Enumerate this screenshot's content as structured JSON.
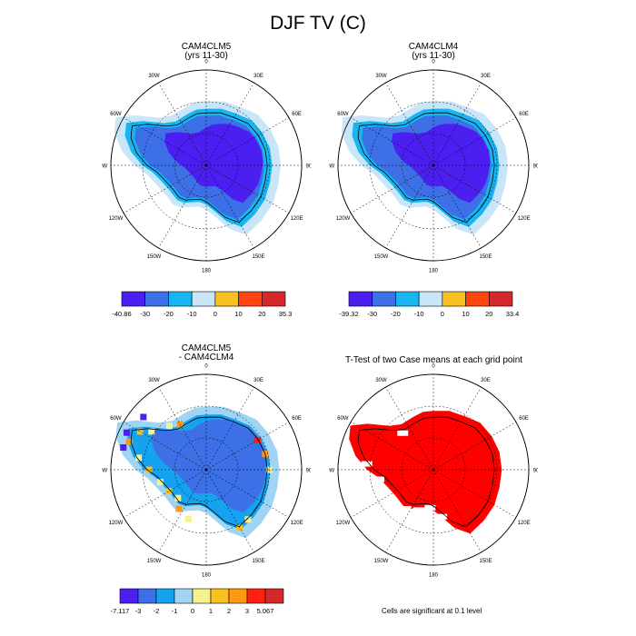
{
  "main_title": "DJF TV (C)",
  "panels": [
    {
      "title_line1": "CAM4CLM5",
      "title_line2": "(yrs 11-30)",
      "lon_labels": [
        "0",
        "30E",
        "60E",
        "90E",
        "120E",
        "150E",
        "180",
        "150W",
        "120W",
        "90W",
        "60W",
        "30W"
      ],
      "colorbar": {
        "colors": [
          "#4a1ff0",
          "#3d6fe6",
          "#17b6f2",
          "#c8e6f8",
          "#f8c020",
          "#ff4410",
          "#d4282a"
        ],
        "labels": [
          "-40.86",
          "-30",
          "-20",
          "-10",
          "0",
          "10",
          "20",
          "35.3"
        ]
      },
      "field": "temperature"
    },
    {
      "title_line1": "CAM4CLM4",
      "title_line2": "(yrs 11-30)",
      "lon_labels": [
        "0",
        "30E",
        "60E",
        "90E",
        "120E",
        "150E",
        "180",
        "150W",
        "120W",
        "90W",
        "60W",
        "30W"
      ],
      "colorbar": {
        "colors": [
          "#4a1ff0",
          "#3d6fe6",
          "#17b6f2",
          "#c8e6f8",
          "#f8c020",
          "#ff4410",
          "#d4282a"
        ],
        "labels": [
          "-39.32",
          "-30",
          "-20",
          "-10",
          "0",
          "10",
          "20",
          "33.4"
        ]
      },
      "field": "temperature"
    },
    {
      "title_line1": "CAM4CLM5",
      "title_line2": "- CAM4CLM4",
      "lon_labels": [
        "0",
        "30E",
        "60E",
        "90E",
        "120E",
        "150E",
        "180",
        "150W",
        "120W",
        "90W",
        "60W",
        "30W"
      ],
      "colorbar": {
        "colors": [
          "#4a1ff0",
          "#3d6fe6",
          "#15a3f0",
          "#9fd4f4",
          "#f5f090",
          "#f8c020",
          "#ff9810",
          "#ff2010",
          "#d4282a"
        ],
        "labels": [
          "-7.117",
          "-3",
          "-2",
          "-1",
          "0",
          "1",
          "2",
          "3",
          "5.067"
        ]
      },
      "field": "difference"
    },
    {
      "title_line1": "T-Test of two Case means at each grid point",
      "title_line2": "",
      "lon_labels": [
        "0",
        "30E",
        "60E",
        "90E",
        "120E",
        "150E",
        "180",
        "150W",
        "120W",
        "90W",
        "60W",
        "30W"
      ],
      "field": "significance",
      "note": "Cells are significant at 0.1 level"
    }
  ],
  "colors": {
    "significant": "#ff0000",
    "coastline": "#000000"
  }
}
